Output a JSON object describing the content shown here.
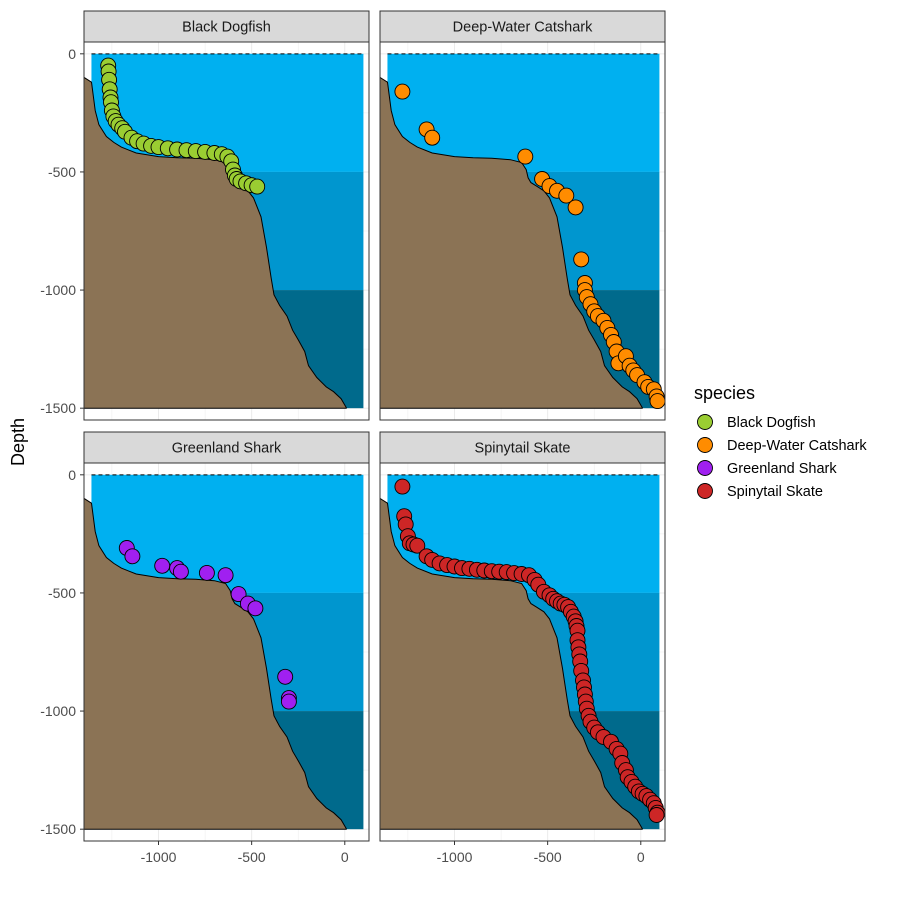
{
  "chart_data": {
    "type": "scatter",
    "layout": "facet-grid-2x2",
    "ylabel": "Depth",
    "xlabel": "",
    "xlim": [
      -1400,
      130
    ],
    "ylim": [
      -1550,
      50
    ],
    "x_ticks": [
      -1000,
      -500,
      0
    ],
    "x_tick_labels": [
      "-1000",
      "-500",
      "0"
    ],
    "y_ticks": [
      0,
      -500,
      -1000,
      -1500
    ],
    "y_tick_labels": [
      "0",
      "-500",
      "-1000",
      "-1500"
    ],
    "grid": true,
    "colors": {
      "water_surface": "#00b0f0",
      "water_mid": "#0096cf",
      "water_deep": "#006a8c",
      "seabed": "#8b7355",
      "strip_bg": "#d9d9d9"
    },
    "water_bands": [
      {
        "from": 0,
        "to": -500,
        "color": "#00b0f0"
      },
      {
        "from": -500,
        "to": -1000,
        "color": "#0096cf"
      },
      {
        "from": -1000,
        "to": -1500,
        "color": "#006a8c"
      }
    ],
    "seabed_profile": [
      [
        -1400,
        -100
      ],
      [
        -1360,
        -120
      ],
      [
        -1340,
        -240
      ],
      [
        -1320,
        -300
      ],
      [
        -1280,
        -350
      ],
      [
        -1240,
        -375
      ],
      [
        -1200,
        -395
      ],
      [
        -1120,
        -420
      ],
      [
        -1000,
        -435
      ],
      [
        -900,
        -440
      ],
      [
        -800,
        -442
      ],
      [
        -700,
        -448
      ],
      [
        -640,
        -460
      ],
      [
        -615,
        -490
      ],
      [
        -605,
        -525
      ],
      [
        -590,
        -545
      ],
      [
        -560,
        -560
      ],
      [
        -520,
        -580
      ],
      [
        -490,
        -610
      ],
      [
        -450,
        -690
      ],
      [
        -420,
        -820
      ],
      [
        -395,
        -950
      ],
      [
        -380,
        -1020
      ],
      [
        -350,
        -1065
      ],
      [
        -310,
        -1110
      ],
      [
        -280,
        -1170
      ],
      [
        -250,
        -1210
      ],
      [
        -215,
        -1260
      ],
      [
        -195,
        -1320
      ],
      [
        -150,
        -1370
      ],
      [
        -100,
        -1410
      ],
      [
        -60,
        -1430
      ],
      [
        -20,
        -1460
      ],
      [
        10,
        -1500
      ]
    ],
    "legend": {
      "title": "species",
      "placement": "right",
      "entries": [
        {
          "label": "Black Dogfish",
          "color": "#9acd32"
        },
        {
          "label": "Deep-Water Catshark",
          "color": "#ff8c00"
        },
        {
          "label": "Greenland Shark",
          "color": "#a020f0"
        },
        {
          "label": "Spinytail Skate",
          "color": "#cd2626"
        }
      ]
    },
    "facets": [
      {
        "title": "Black Dogfish",
        "color": "#9acd32",
        "points": [
          [
            -1270,
            -50
          ],
          [
            -1268,
            -75
          ],
          [
            -1265,
            -110
          ],
          [
            -1262,
            -150
          ],
          [
            -1258,
            -185
          ],
          [
            -1255,
            -205
          ],
          [
            -1250,
            -240
          ],
          [
            -1242,
            -265
          ],
          [
            -1230,
            -285
          ],
          [
            -1215,
            -300
          ],
          [
            -1195,
            -315
          ],
          [
            -1180,
            -330
          ],
          [
            -1145,
            -355
          ],
          [
            -1115,
            -370
          ],
          [
            -1080,
            -380
          ],
          [
            -1040,
            -390
          ],
          [
            -1000,
            -395
          ],
          [
            -950,
            -400
          ],
          [
            -900,
            -405
          ],
          [
            -850,
            -408
          ],
          [
            -800,
            -412
          ],
          [
            -750,
            -415
          ],
          [
            -700,
            -420
          ],
          [
            -660,
            -425
          ],
          [
            -630,
            -435
          ],
          [
            -610,
            -455
          ],
          [
            -600,
            -490
          ],
          [
            -590,
            -515
          ],
          [
            -580,
            -530
          ],
          [
            -560,
            -540
          ],
          [
            -530,
            -548
          ],
          [
            -500,
            -556
          ],
          [
            -470,
            -562
          ]
        ]
      },
      {
        "title": "Deep-Water Catshark",
        "color": "#ff8c00",
        "points": [
          [
            -1280,
            -160
          ],
          [
            -1150,
            -320
          ],
          [
            -1120,
            -355
          ],
          [
            -620,
            -435
          ],
          [
            -530,
            -530
          ],
          [
            -490,
            -560
          ],
          [
            -450,
            -580
          ],
          [
            -400,
            -600
          ],
          [
            -350,
            -650
          ],
          [
            -320,
            -870
          ],
          [
            -300,
            -970
          ],
          [
            -300,
            -1000
          ],
          [
            -290,
            -1030
          ],
          [
            -270,
            -1060
          ],
          [
            -250,
            -1090
          ],
          [
            -230,
            -1110
          ],
          [
            -200,
            -1130
          ],
          [
            -180,
            -1160
          ],
          [
            -160,
            -1190
          ],
          [
            -145,
            -1220
          ],
          [
            -130,
            -1260
          ],
          [
            -120,
            -1310
          ],
          [
            -80,
            -1280
          ],
          [
            -60,
            -1320
          ],
          [
            -40,
            -1340
          ],
          [
            -20,
            -1360
          ],
          [
            20,
            -1390
          ],
          [
            40,
            -1410
          ],
          [
            70,
            -1420
          ],
          [
            85,
            -1450
          ],
          [
            90,
            -1470
          ]
        ]
      },
      {
        "title": "Greenland Shark",
        "color": "#a020f0",
        "points": [
          [
            -1170,
            -310
          ],
          [
            -1140,
            -345
          ],
          [
            -980,
            -385
          ],
          [
            -900,
            -395
          ],
          [
            -880,
            -410
          ],
          [
            -740,
            -415
          ],
          [
            -640,
            -425
          ],
          [
            -570,
            -505
          ],
          [
            -520,
            -545
          ],
          [
            -480,
            -565
          ],
          [
            -320,
            -855
          ],
          [
            -300,
            -945
          ],
          [
            -300,
            -960
          ]
        ]
      },
      {
        "title": "Spinytail Skate",
        "color": "#cd2626",
        "points": [
          [
            -1280,
            -50
          ],
          [
            -1270,
            -175
          ],
          [
            -1262,
            -210
          ],
          [
            -1250,
            -260
          ],
          [
            -1240,
            -290
          ],
          [
            -1220,
            -295
          ],
          [
            -1200,
            -300
          ],
          [
            -1150,
            -345
          ],
          [
            -1120,
            -360
          ],
          [
            -1080,
            -375
          ],
          [
            -1040,
            -382
          ],
          [
            -1000,
            -388
          ],
          [
            -960,
            -395
          ],
          [
            -920,
            -398
          ],
          [
            -880,
            -402
          ],
          [
            -840,
            -405
          ],
          [
            -800,
            -408
          ],
          [
            -760,
            -410
          ],
          [
            -720,
            -412
          ],
          [
            -680,
            -416
          ],
          [
            -640,
            -420
          ],
          [
            -600,
            -425
          ],
          [
            -570,
            -445
          ],
          [
            -550,
            -465
          ],
          [
            -520,
            -495
          ],
          [
            -490,
            -510
          ],
          [
            -470,
            -525
          ],
          [
            -450,
            -535
          ],
          [
            -430,
            -545
          ],
          [
            -410,
            -550
          ],
          [
            -390,
            -560
          ],
          [
            -375,
            -580
          ],
          [
            -360,
            -600
          ],
          [
            -350,
            -620
          ],
          [
            -345,
            -640
          ],
          [
            -340,
            -660
          ],
          [
            -340,
            -700
          ],
          [
            -335,
            -730
          ],
          [
            -330,
            -760
          ],
          [
            -325,
            -790
          ],
          [
            -320,
            -830
          ],
          [
            -310,
            -870
          ],
          [
            -305,
            -900
          ],
          [
            -300,
            -930
          ],
          [
            -295,
            -960
          ],
          [
            -290,
            -990
          ],
          [
            -280,
            -1020
          ],
          [
            -270,
            -1045
          ],
          [
            -250,
            -1070
          ],
          [
            -230,
            -1090
          ],
          [
            -200,
            -1110
          ],
          [
            -160,
            -1130
          ],
          [
            -130,
            -1160
          ],
          [
            -110,
            -1180
          ],
          [
            -100,
            -1220
          ],
          [
            -80,
            -1250
          ],
          [
            -70,
            -1280
          ],
          [
            -50,
            -1300
          ],
          [
            -30,
            -1320
          ],
          [
            -10,
            -1340
          ],
          [
            10,
            -1350
          ],
          [
            30,
            -1360
          ],
          [
            50,
            -1375
          ],
          [
            70,
            -1390
          ],
          [
            80,
            -1410
          ],
          [
            90,
            -1430
          ],
          [
            85,
            -1440
          ]
        ]
      }
    ]
  }
}
